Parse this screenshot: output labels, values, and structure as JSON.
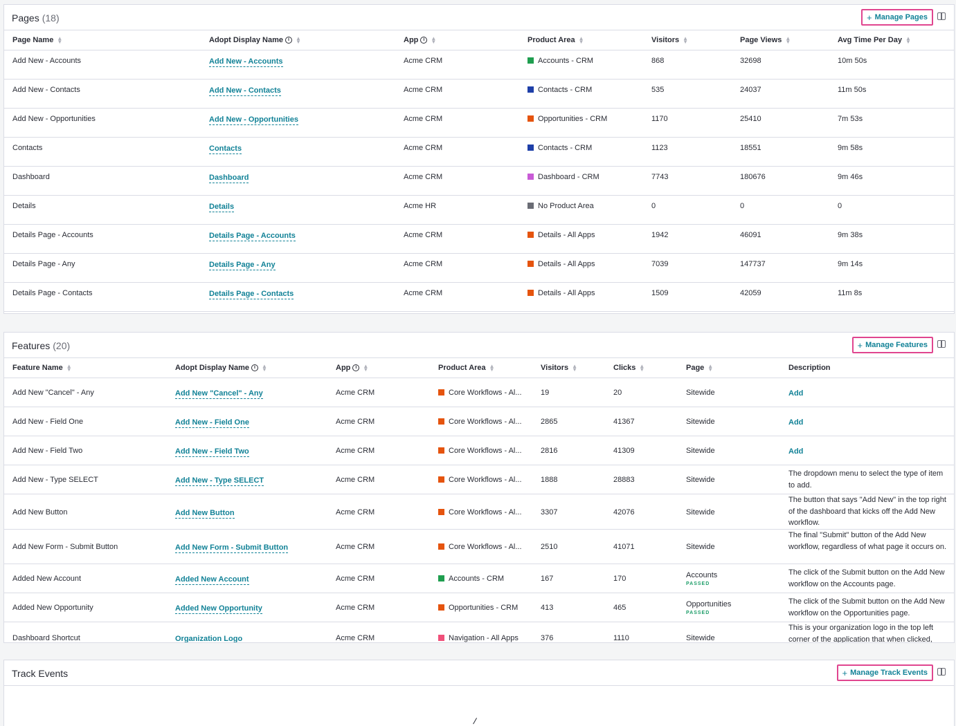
{
  "colors": {
    "accent": "#128297",
    "highlight": "#e0458f",
    "passed": "#1f9e6a"
  },
  "pages": {
    "title": "Pages",
    "count": "(18)",
    "manage_label": "Manage Pages",
    "columns": [
      "Page Name",
      "Adopt Display Name",
      "App",
      "Product Area",
      "Visitors",
      "Page Views",
      "Avg Time Per Day"
    ],
    "rows": [
      {
        "name": "Add New - Accounts",
        "display": "Add New - Accounts",
        "app": "Acme CRM",
        "area": "Accounts - CRM",
        "area_color": "#1f9e4f",
        "visitors": "868",
        "views": "32698",
        "avg": "10m 50s"
      },
      {
        "name": "Add New - Contacts",
        "display": "Add New - Contacts",
        "app": "Acme CRM",
        "area": "Contacts - CRM",
        "area_color": "#1e3fa8",
        "visitors": "535",
        "views": "24037",
        "avg": "11m 50s"
      },
      {
        "name": "Add New - Opportunities",
        "display": "Add New - Opportunities",
        "app": "Acme CRM",
        "area": "Opportunities - CRM",
        "area_color": "#e5540e",
        "visitors": "1170",
        "views": "25410",
        "avg": "7m 53s"
      },
      {
        "name": "Contacts",
        "display": "Contacts",
        "app": "Acme CRM",
        "area": "Contacts - CRM",
        "area_color": "#1e3fa8",
        "visitors": "1123",
        "views": "18551",
        "avg": "9m 58s"
      },
      {
        "name": "Dashboard",
        "display": "Dashboard",
        "app": "Acme CRM",
        "area": "Dashboard - CRM",
        "area_color": "#c95bd6",
        "visitors": "7743",
        "views": "180676",
        "avg": "9m 46s"
      },
      {
        "name": "Details",
        "display": "Details",
        "app": "Acme HR",
        "area": "No Product Area",
        "area_color": "#6a6c75",
        "visitors": "0",
        "views": "0",
        "avg": "0"
      },
      {
        "name": "Details Page - Accounts",
        "display": "Details Page - Accounts",
        "app": "Acme CRM",
        "area": "Details - All Apps",
        "area_color": "#e5540e",
        "visitors": "1942",
        "views": "46091",
        "avg": "9m 38s"
      },
      {
        "name": "Details Page - Any",
        "display": "Details Page - Any",
        "app": "Acme CRM",
        "area": "Details - All Apps",
        "area_color": "#e5540e",
        "visitors": "7039",
        "views": "147737",
        "avg": "9m 14s"
      },
      {
        "name": "Details Page - Contacts",
        "display": "Details Page - Contacts",
        "app": "Acme CRM",
        "area": "Details - All Apps",
        "area_color": "#e5540e",
        "visitors": "1509",
        "views": "42059",
        "avg": "11m 8s"
      }
    ]
  },
  "features": {
    "title": "Features",
    "count": "(20)",
    "manage_label": "Manage Features",
    "columns": [
      "Feature Name",
      "Adopt Display Name",
      "App",
      "Product Area",
      "Visitors",
      "Clicks",
      "Page",
      "Description"
    ],
    "rows": [
      {
        "name": "Add New \"Cancel\" - Any",
        "display": "Add New \"Cancel\" - Any",
        "app": "Acme CRM",
        "area": "Core Workflows - Al...",
        "area_color": "#e5540e",
        "visitors": "19",
        "clicks": "20",
        "page": "Sitewide",
        "page_status": "",
        "desc": "",
        "desc_link": "Add"
      },
      {
        "name": "Add New - Field One",
        "display": "Add New - Field One",
        "app": "Acme CRM",
        "area": "Core Workflows - Al...",
        "area_color": "#e5540e",
        "visitors": "2865",
        "clicks": "41367",
        "page": "Sitewide",
        "page_status": "",
        "desc": "",
        "desc_link": "Add"
      },
      {
        "name": "Add New - Field Two",
        "display": "Add New - Field Two",
        "app": "Acme CRM",
        "area": "Core Workflows - Al...",
        "area_color": "#e5540e",
        "visitors": "2816",
        "clicks": "41309",
        "page": "Sitewide",
        "page_status": "",
        "desc": "",
        "desc_link": "Add"
      },
      {
        "name": "Add New - Type SELECT",
        "display": "Add New - Type SELECT",
        "app": "Acme CRM",
        "area": "Core Workflows - Al...",
        "area_color": "#e5540e",
        "visitors": "1888",
        "clicks": "28883",
        "page": "Sitewide",
        "page_status": "",
        "desc": "The dropdown menu to select the type of item to add.",
        "desc_link": ""
      },
      {
        "name": "Add New Button",
        "display": "Add New Button",
        "app": "Acme CRM",
        "area": "Core Workflows - Al...",
        "area_color": "#e5540e",
        "visitors": "3307",
        "clicks": "42076",
        "page": "Sitewide",
        "page_status": "",
        "desc": "The button that says \"Add New\" in the top right of the dashboard that kicks off the Add New workflow.",
        "desc_link": ""
      },
      {
        "name": "Add New Form - Submit Button",
        "display": "Add New Form - Submit Button",
        "app": "Acme CRM",
        "area": "Core Workflows - Al...",
        "area_color": "#e5540e",
        "visitors": "2510",
        "clicks": "41071",
        "page": "Sitewide",
        "page_status": "",
        "desc": "The final \"Submit\" button of the Add New workflow, regardless of what page it occurs on.",
        "desc_link": ""
      },
      {
        "name": "Added New Account",
        "display": "Added New Account",
        "app": "Acme CRM",
        "area": "Accounts - CRM",
        "area_color": "#1f9e4f",
        "visitors": "167",
        "clicks": "170",
        "page": "Accounts",
        "page_status": "PASSED",
        "desc": "The click of the Submit button on the Add New workflow on the Accounts page.",
        "desc_link": ""
      },
      {
        "name": "Added New Opportunity",
        "display": "Added New Opportunity",
        "app": "Acme CRM",
        "area": "Opportunities - CRM",
        "area_color": "#e5540e",
        "visitors": "413",
        "clicks": "465",
        "page": "Opportunities",
        "page_status": "PASSED",
        "desc": "The click of the Submit button on the Add New workflow on the Opportunities page.",
        "desc_link": ""
      },
      {
        "name": "Dashboard Shortcut",
        "display": "Organization Logo",
        "app": "Acme CRM",
        "area": "Navigation - All Apps",
        "area_color": "#f0507a",
        "visitors": "376",
        "clicks": "1110",
        "page": "Sitewide",
        "page_status": "",
        "desc": "This is your organization logo in the top left corner of the application that when clicked,",
        "desc_link": ""
      }
    ]
  },
  "track_events": {
    "title": "Track Events",
    "manage_label": "Manage Track Events"
  }
}
